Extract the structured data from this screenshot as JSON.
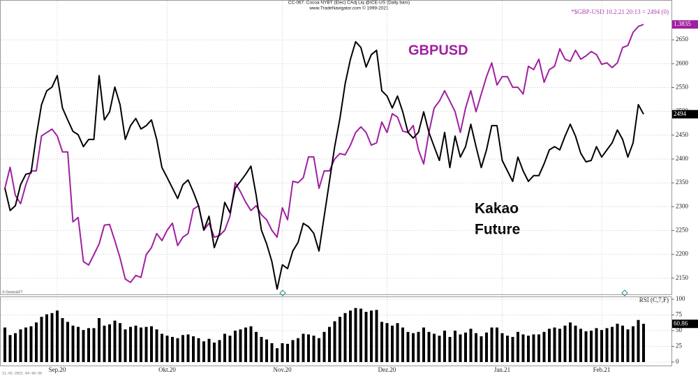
{
  "header": {
    "title": "CC-067: Cocoa NYBT (Elec) CAdj Liq @ICE-US  (Daily bars)",
    "subtitle": "www.TradeNavigator.com © 1999-2021"
  },
  "footer": {
    "source": "© GenesisFT",
    "timestamp": "11.02.2021 04:49:39"
  },
  "chart_data": {
    "type": "line",
    "categories": [
      null,
      null,
      null,
      null,
      null,
      null,
      null,
      null,
      null,
      null,
      "Sep.20",
      null,
      null,
      null,
      null,
      null,
      null,
      null,
      null,
      null,
      null,
      null,
      null,
      null,
      null,
      null,
      null,
      null,
      null,
      null,
      null,
      "Okt.20",
      null,
      null,
      null,
      null,
      null,
      null,
      null,
      null,
      null,
      null,
      null,
      null,
      null,
      null,
      null,
      null,
      null,
      null,
      null,
      null,
      null,
      "Nov.20",
      null,
      null,
      null,
      null,
      null,
      null,
      null,
      null,
      null,
      null,
      null,
      null,
      null,
      null,
      null,
      null,
      null,
      null,
      null,
      "Dez.20",
      null,
      null,
      null,
      null,
      null,
      null,
      null,
      null,
      null,
      null,
      null,
      null,
      null,
      null,
      null,
      null,
      null,
      null,
      null,
      null,
      null,
      "Jan.21",
      null,
      null,
      null,
      null,
      null,
      null,
      null,
      null,
      null,
      null,
      null,
      null,
      null,
      null,
      null,
      null,
      null,
      null,
      "Feb.21",
      null,
      null,
      null,
      null,
      null,
      null,
      null,
      null
    ],
    "series": [
      {
        "name": "*$GBP-USD",
        "info": "10.2.21 20:13 = 2494 (0)",
        "color": "#a020a0",
        "axis": "y2",
        "values": [
          1.311,
          1.3203,
          1.3079,
          1.3042,
          1.3126,
          1.3187,
          1.3187,
          1.3342,
          1.3357,
          1.3372,
          1.3342,
          1.3271,
          1.3271,
          1.2962,
          1.2981,
          1.2786,
          1.2771,
          1.2817,
          1.2864,
          1.2947,
          1.295,
          1.2879,
          1.2802,
          1.2709,
          1.2694,
          1.2725,
          1.2716,
          1.2817,
          1.2848,
          1.291,
          1.2879,
          1.2925,
          1.2956,
          1.2857,
          1.2894,
          1.291,
          1.3018,
          1.3033,
          1.2925,
          1.2956,
          1.2894,
          1.2901,
          1.2925,
          1.2987,
          1.3135,
          1.3095,
          1.3049,
          1.3012,
          1.3033,
          1.2993,
          1.2971,
          1.2925,
          1.2894,
          1.3024,
          1.2971,
          1.3141,
          1.3135,
          1.3157,
          1.3249,
          1.3249,
          1.311,
          1.3187,
          1.3187,
          1.324,
          1.3264,
          1.3258,
          1.3301,
          1.3357,
          1.3382,
          1.3357,
          1.3301,
          1.3311,
          1.3403,
          1.3357,
          1.344,
          1.3425,
          1.3363,
          1.3357,
          1.3388,
          1.328,
          1.3218,
          1.3357,
          1.3465,
          1.3496,
          1.3542,
          1.3496,
          1.3449,
          1.3357,
          1.3465,
          1.3542,
          1.3449,
          1.3527,
          1.3604,
          1.3665,
          1.3567,
          1.3604,
          1.3604,
          1.3557,
          1.3557,
          1.3527,
          1.365,
          1.3635,
          1.3681,
          1.3579,
          1.3635,
          1.365,
          1.3727,
          1.3681,
          1.3672,
          1.3721,
          1.3681,
          1.3696,
          1.3715,
          1.3702,
          1.3659,
          1.3665,
          1.3644,
          1.3665,
          1.3733,
          1.3742,
          1.38,
          1.3826,
          1.3835
        ]
      },
      {
        "color": "#000000",
        "values": [
          2339,
          2292,
          2302,
          2346,
          2368,
          2371,
          2448,
          2514,
          2543,
          2551,
          2575,
          2507,
          2482,
          2458,
          2451,
          2426,
          2441,
          2441,
          2575,
          2482,
          2499,
          2551,
          2514,
          2441,
          2470,
          2485,
          2463,
          2470,
          2482,
          2441,
          2382,
          2361,
          2339,
          2317,
          2346,
          2356,
          2331,
          2302,
          2251,
          2280,
          2214,
          2244,
          2309,
          2287,
          2339,
          2353,
          2368,
          2385,
          2324,
          2251,
          2222,
          2185,
          2127,
          2178,
          2170,
          2207,
          2225,
          2265,
          2258,
          2244,
          2207,
          2280,
          2353,
          2426,
          2485,
          2558,
          2609,
          2646,
          2634,
          2593,
          2619,
          2628,
          2543,
          2532,
          2507,
          2532,
          2499,
          2456,
          2444,
          2456,
          2499,
          2456,
          2426,
          2397,
          2456,
          2382,
          2448,
          2404,
          2426,
          2473,
          2426,
          2382,
          2419,
          2470,
          2470,
          2397,
          2375,
          2353,
          2404,
          2375,
          2353,
          2365,
          2365,
          2390,
          2419,
          2426,
          2419,
          2448,
          2473,
          2448,
          2412,
          2394,
          2397,
          2426,
          2404,
          2419,
          2434,
          2461,
          2441,
          2404,
          2434,
          2514,
          2494
        ]
      }
    ],
    "ylim": [
      2116,
      2716
    ],
    "yticks": [
      2150,
      2200,
      2250,
      2300,
      2350,
      2400,
      2450,
      2500,
      2550,
      2600,
      2650
    ],
    "y2lim": [
      1.2641,
      1.3906
    ],
    "grid": true,
    "annotations": [
      "GBPUSD",
      "Kakao",
      "Future"
    ],
    "indicator": {
      "type": "bar",
      "title": "RSI (C,7,F)",
      "color": "#000000",
      "values": [
        55,
        43,
        46,
        52,
        55,
        57,
        63,
        72,
        76,
        78,
        82,
        70,
        64,
        58,
        56,
        51,
        54,
        54,
        70,
        58,
        60,
        66,
        62,
        52,
        56,
        58,
        55,
        56,
        57,
        52,
        45,
        42,
        40,
        38,
        43,
        44,
        41,
        38,
        33,
        37,
        31,
        35,
        45,
        42,
        50,
        52,
        55,
        57,
        48,
        40,
        36,
        30,
        22,
        30,
        29,
        35,
        38,
        45,
        44,
        42,
        38,
        48,
        56,
        65,
        72,
        78,
        82,
        86,
        85,
        80,
        82,
        83,
        64,
        62,
        58,
        62,
        55,
        48,
        46,
        48,
        55,
        48,
        45,
        42,
        50,
        40,
        50,
        44,
        47,
        53,
        46,
        41,
        47,
        55,
        55,
        46,
        42,
        40,
        48,
        44,
        42,
        44,
        44,
        48,
        53,
        55,
        53,
        58,
        63,
        58,
        53,
        49,
        50,
        54,
        51,
        54,
        56,
        61,
        58,
        52,
        57,
        67,
        60.86
      ],
      "ylim": [
        0,
        100
      ],
      "yticks": [
        0,
        25,
        50,
        75,
        100
      ]
    }
  }
}
